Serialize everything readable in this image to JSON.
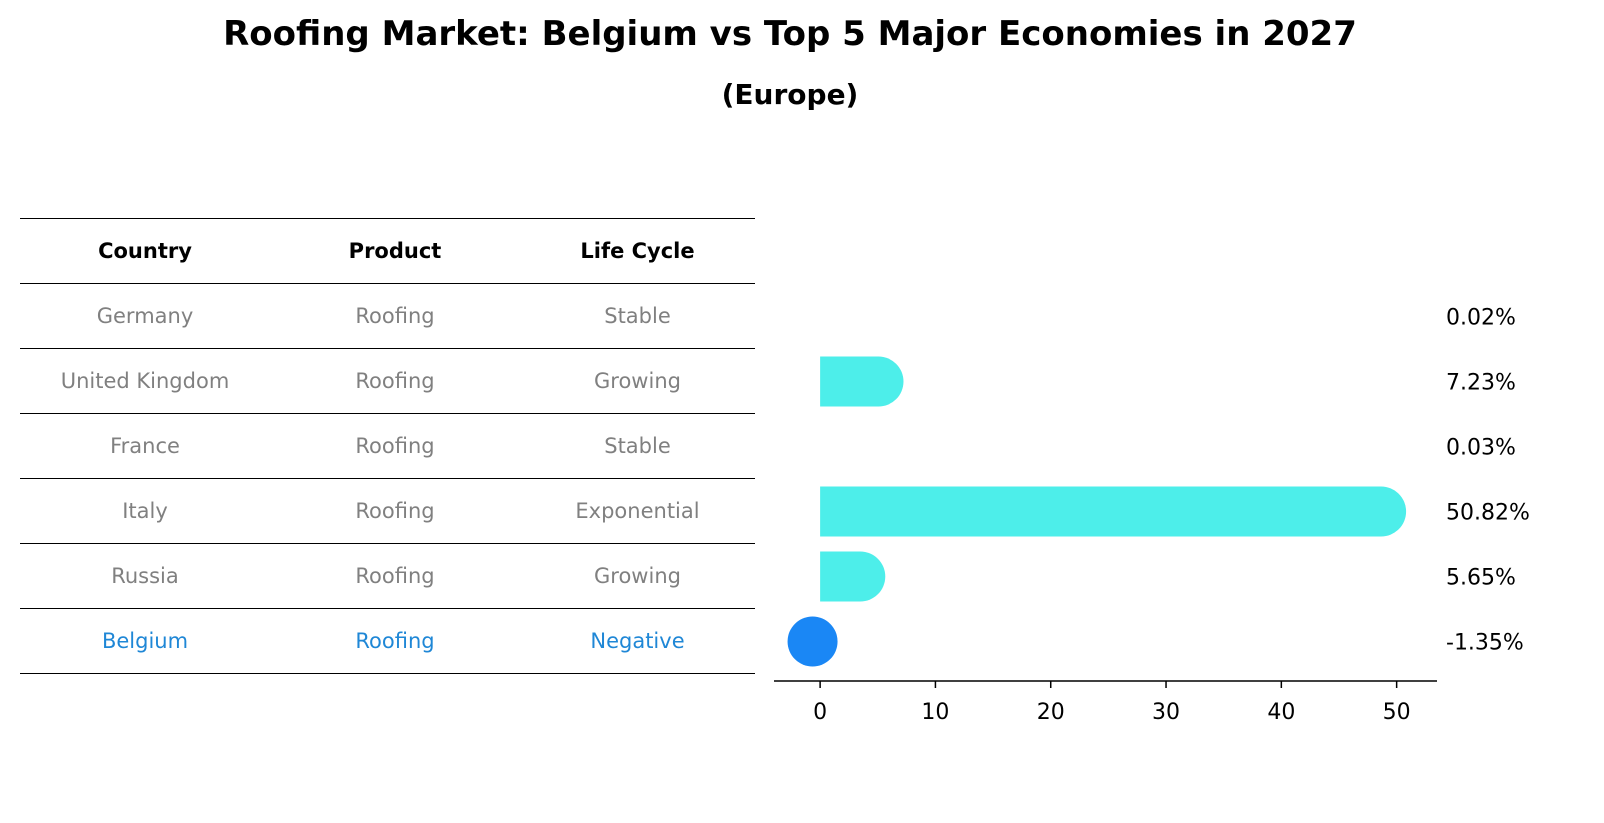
{
  "header": {
    "title": "Roofing Market: Belgium vs Top 5 Major Economies in 2027",
    "subtitle": "(Europe)"
  },
  "table": {
    "columns": [
      "Country",
      "Product",
      "Life Cycle"
    ],
    "rows": [
      {
        "country": "Germany",
        "product": "Roofing",
        "life_cycle": "Stable"
      },
      {
        "country": "United Kingdom",
        "product": "Roofing",
        "life_cycle": "Growing"
      },
      {
        "country": "France",
        "product": "Roofing",
        "life_cycle": "Stable"
      },
      {
        "country": "Italy",
        "product": "Roofing",
        "life_cycle": "Exponential"
      },
      {
        "country": "Russia",
        "product": "Roofing",
        "life_cycle": "Growing"
      },
      {
        "country": "Belgium",
        "product": "Roofing",
        "life_cycle": "Negative"
      }
    ],
    "highlight_color": "#1f87d6",
    "text_color": "#808080"
  },
  "chart_data": {
    "type": "bar",
    "orientation": "horizontal",
    "categories": [
      "Germany",
      "United Kingdom",
      "France",
      "Italy",
      "Russia",
      "Belgium"
    ],
    "values": [
      0.02,
      7.23,
      0.03,
      50.82,
      5.65,
      -1.35
    ],
    "value_labels": [
      "0.02%",
      "7.23%",
      "0.03%",
      "50.82%",
      "5.65%",
      "-1.35%"
    ],
    "xticks": [
      0,
      10,
      20,
      30,
      40,
      50
    ],
    "xlim": [
      -4,
      53.5
    ],
    "bar_color": "#4deeea",
    "highlight_color": "#1a87f5",
    "grid": false,
    "legend": false
  }
}
